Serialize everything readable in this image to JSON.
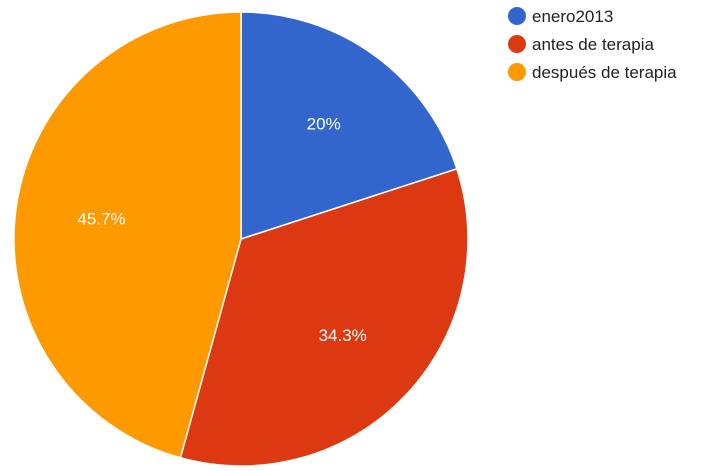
{
  "chart_data": {
    "type": "pie",
    "title": "",
    "slices": [
      {
        "label": "enero2013",
        "value": 20,
        "display": "20%",
        "color": "#3366cc"
      },
      {
        "label": "antes de terapia",
        "value": 34.3,
        "display": "34.3%",
        "color": "#dc3912"
      },
      {
        "label": "después de terapia",
        "value": 45.7,
        "display": "45.7%",
        "color": "#ff9900"
      }
    ],
    "legend_position": "right"
  }
}
